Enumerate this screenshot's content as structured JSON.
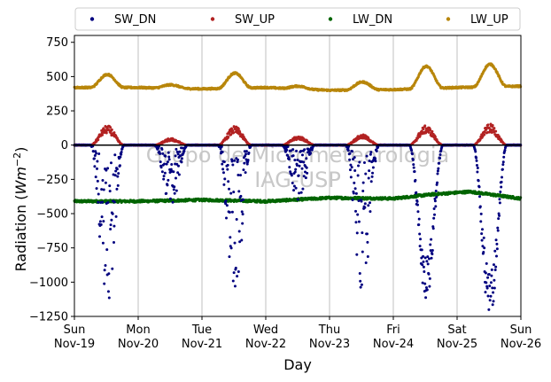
{
  "chart_data": {
    "type": "scatter",
    "xlabel": "Day",
    "ylabel_main": "Radiation (",
    "ylabel_unit": "Wm",
    "ylabel_exp": "−2",
    "ylabel_close": ")",
    "ylim": [
      -1250,
      800
    ],
    "xlim": [
      0,
      7
    ],
    "y_ticks": [
      -1250,
      -1000,
      -750,
      -500,
      -250,
      0,
      250,
      500,
      750
    ],
    "y_tick_labels": [
      "−1250",
      "−1000",
      "−750",
      "−500",
      "−250",
      "0",
      "250",
      "500",
      "750"
    ],
    "x_ticks": [
      {
        "pos": 0,
        "day": "Sun",
        "date": "Nov-19"
      },
      {
        "pos": 1,
        "day": "Mon",
        "date": "Nov-20"
      },
      {
        "pos": 2,
        "day": "Tue",
        "date": "Nov-21"
      },
      {
        "pos": 3,
        "day": "Wed",
        "date": "Nov-22"
      },
      {
        "pos": 4,
        "day": "Thu",
        "date": "Nov-23"
      },
      {
        "pos": 5,
        "day": "Fri",
        "date": "Nov-24"
      },
      {
        "pos": 6,
        "day": "Sat",
        "date": "Nov-25"
      },
      {
        "pos": 7,
        "day": "Sun",
        "date": "Nov-26"
      }
    ],
    "grid": "vertical",
    "legend_position": "top",
    "watermark": [
      "Grupo de Micrometeorologia",
      "IAG-USP"
    ],
    "series": [
      {
        "name": "SW_DN",
        "color": "#00007f",
        "night_value": 0,
        "daily_peak": [
          -1180,
          -470,
          -1100,
          -420,
          -1100,
          -1090,
          -1230
        ]
      },
      {
        "name": "SW_UP",
        "color": "#b22222",
        "night_value": 0,
        "daily_peak": [
          130,
          45,
          125,
          60,
          70,
          130,
          140
        ]
      },
      {
        "name": "LW_DN",
        "color": "#006400",
        "base": [
          [
            0,
            -410
          ],
          [
            1,
            -410
          ],
          [
            2,
            -400
          ],
          [
            3,
            -410
          ],
          [
            4,
            -385
          ],
          [
            5,
            -390
          ],
          [
            5.6,
            -360
          ],
          [
            6.2,
            -340
          ],
          [
            7,
            -390
          ]
        ]
      },
      {
        "name": "LW_UP",
        "color": "#b8860b",
        "base": [
          [
            0,
            420
          ],
          [
            1,
            420
          ],
          [
            2,
            410
          ],
          [
            3,
            420
          ],
          [
            4,
            400
          ],
          [
            5,
            405
          ],
          [
            6,
            420
          ],
          [
            7,
            430
          ]
        ],
        "daily_peak": [
          515,
          440,
          525,
          430,
          460,
          575,
          590
        ]
      }
    ]
  }
}
